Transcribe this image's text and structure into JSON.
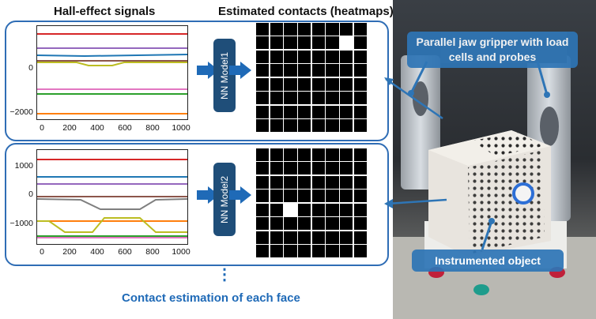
{
  "headers": {
    "signals": "Hall-effect signals",
    "contacts": "Estimated contacts (heatmaps)"
  },
  "panel1": {
    "model_label": "NN Model1",
    "yticks": [
      "0",
      "−2000"
    ],
    "xticks": [
      "0",
      "200",
      "400",
      "600",
      "800",
      "1000"
    ],
    "heat_on": [
      [
        1,
        6
      ]
    ]
  },
  "panel2": {
    "model_label": "NN Model2",
    "yticks": [
      "1000",
      "0",
      "−1000"
    ],
    "xticks": [
      "0",
      "200",
      "400",
      "600",
      "800",
      "1000"
    ],
    "heat_on": [
      [
        4,
        2
      ]
    ]
  },
  "callouts": {
    "gripper": "Parallel jaw gripper with load cells and probes",
    "object": "Instrumented object"
  },
  "footer": {
    "dots": "⋮",
    "caption": "Contact estimation of each face"
  },
  "colors": {
    "accent": "#2f6db5",
    "nn_box": "#1f4e79",
    "callout": "#2e75b6"
  }
}
